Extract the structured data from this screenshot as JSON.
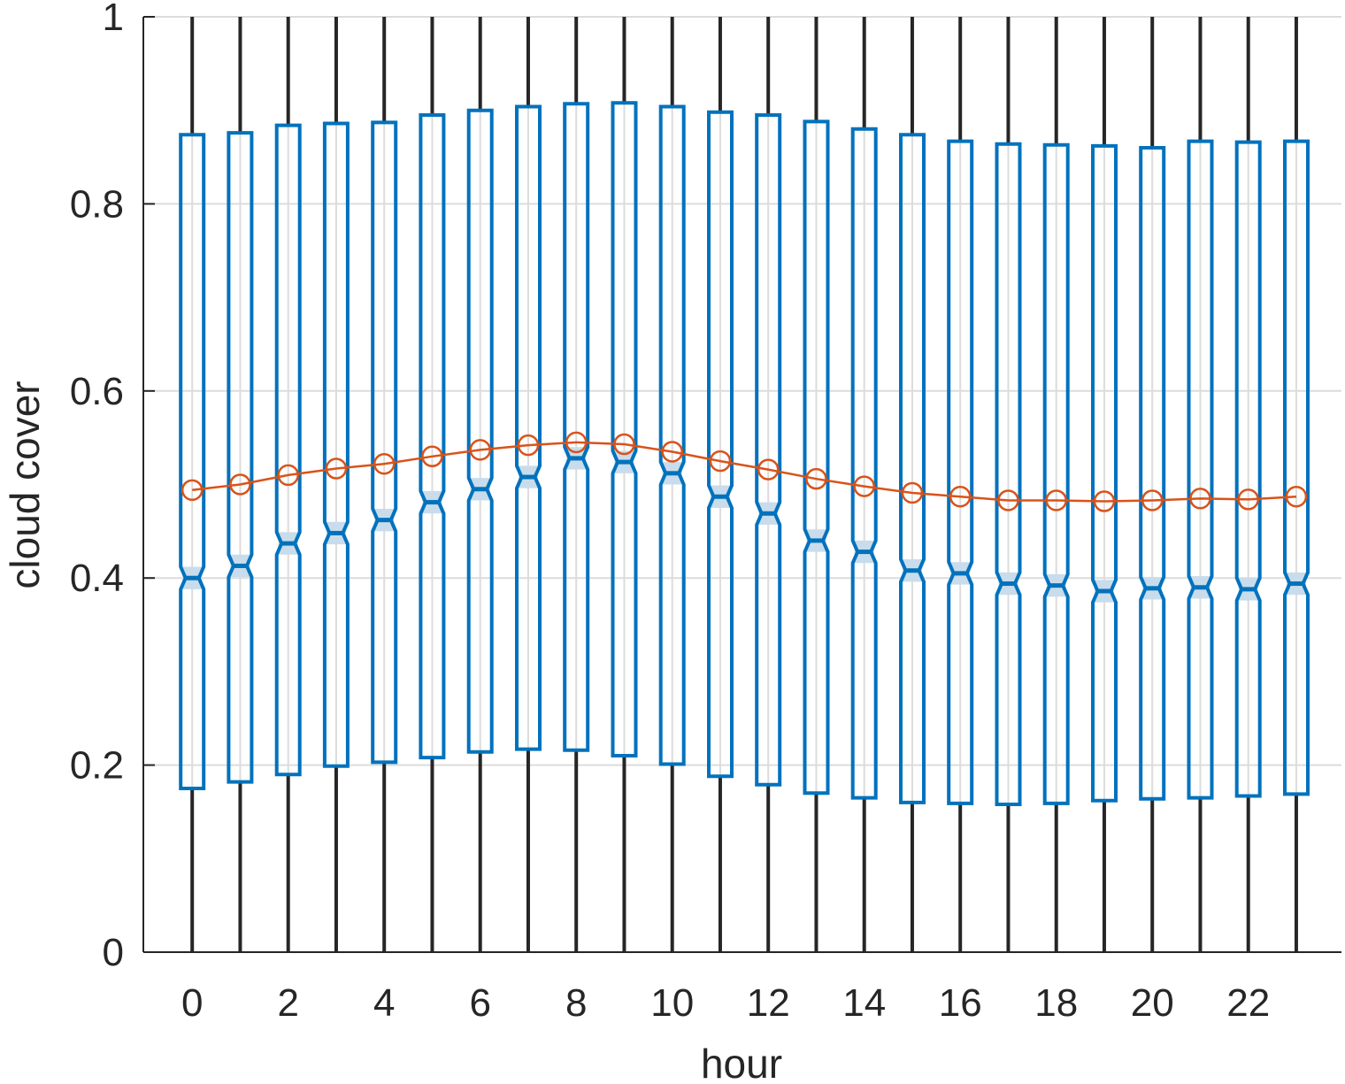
{
  "chart_data": {
    "type": "box",
    "xlabel": "hour",
    "ylabel": "cloud cover",
    "ylim": [
      0,
      1
    ],
    "xlim": [
      -0.8,
      23.8
    ],
    "x_ticks": [
      "0",
      "2",
      "4",
      "6",
      "8",
      "10",
      "12",
      "14",
      "16",
      "18",
      "20",
      "22"
    ],
    "x_tick_values": [
      0,
      2,
      4,
      6,
      8,
      10,
      12,
      14,
      16,
      18,
      20,
      22
    ],
    "y_ticks": [
      "0",
      "0.2",
      "0.4",
      "0.6",
      "0.8",
      "1"
    ],
    "y_tick_values": [
      0,
      0.2,
      0.4,
      0.6,
      0.8,
      1
    ],
    "grid": true,
    "hours": [
      0,
      1,
      2,
      3,
      4,
      5,
      6,
      7,
      8,
      9,
      10,
      11,
      12,
      13,
      14,
      15,
      16,
      17,
      18,
      19,
      20,
      21,
      22,
      23
    ],
    "whisker_low": [
      0,
      0,
      0,
      0,
      0,
      0,
      0,
      0,
      0,
      0,
      0,
      0,
      0,
      0,
      0,
      0,
      0,
      0,
      0,
      0,
      0,
      0,
      0,
      0
    ],
    "whisker_high": [
      1,
      1,
      1,
      1,
      1,
      1,
      1,
      1,
      1,
      1,
      1,
      1,
      1,
      1,
      1,
      1,
      1,
      1,
      1,
      1,
      1,
      1,
      1,
      1
    ],
    "q1": [
      0.175,
      0.182,
      0.19,
      0.199,
      0.203,
      0.208,
      0.214,
      0.217,
      0.216,
      0.21,
      0.201,
      0.188,
      0.179,
      0.17,
      0.165,
      0.16,
      0.159,
      0.158,
      0.159,
      0.162,
      0.164,
      0.165,
      0.167,
      0.169
    ],
    "median": [
      0.4,
      0.413,
      0.437,
      0.448,
      0.462,
      0.481,
      0.495,
      0.508,
      0.528,
      0.524,
      0.512,
      0.487,
      0.469,
      0.44,
      0.428,
      0.408,
      0.405,
      0.394,
      0.392,
      0.386,
      0.389,
      0.39,
      0.388,
      0.394
    ],
    "q3": [
      0.874,
      0.876,
      0.884,
      0.886,
      0.887,
      0.895,
      0.9,
      0.904,
      0.907,
      0.908,
      0.904,
      0.898,
      0.895,
      0.888,
      0.88,
      0.874,
      0.867,
      0.864,
      0.863,
      0.862,
      0.86,
      0.867,
      0.866,
      0.867
    ],
    "mean": [
      0.494,
      0.5,
      0.51,
      0.517,
      0.522,
      0.53,
      0.537,
      0.542,
      0.545,
      0.543,
      0.535,
      0.525,
      0.516,
      0.506,
      0.498,
      0.491,
      0.487,
      0.483,
      0.483,
      0.482,
      0.483,
      0.485,
      0.484,
      0.487
    ],
    "colors": {
      "box": "#0072BD",
      "notch_fill": "#C9DCEC",
      "whisker": "#262626",
      "mean_line": "#D95319",
      "grid": "#DCDCDC",
      "axis": "#262626"
    }
  }
}
